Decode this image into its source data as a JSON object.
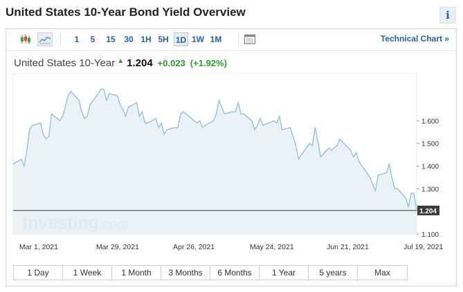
{
  "page": {
    "title": "United States 10-Year Bond Yield Overview",
    "info_label": "i"
  },
  "toolbar": {
    "timeframes": [
      "1",
      "5",
      "15",
      "30",
      "1H",
      "5H",
      "1D",
      "1W",
      "1M"
    ],
    "active_timeframe": "1D",
    "technical_chart_label": "Technical Chart »",
    "icons": [
      "candlestick-icon",
      "line-chart-icon",
      "calendar-icon"
    ]
  },
  "quote": {
    "name": "United States 10-Year",
    "last": "1.204",
    "change": "+0.023",
    "change_percent": "(+1.92%)"
  },
  "chart_data": {
    "type": "area",
    "x": [
      "2021-02-26",
      "2021-03-01",
      "2021-03-02",
      "2021-03-03",
      "2021-03-04",
      "2021-03-05",
      "2021-03-08",
      "2021-03-09",
      "2021-03-10",
      "2021-03-11",
      "2021-03-12",
      "2021-03-15",
      "2021-03-16",
      "2021-03-17",
      "2021-03-18",
      "2021-03-19",
      "2021-03-22",
      "2021-03-23",
      "2021-03-24",
      "2021-03-25",
      "2021-03-26",
      "2021-03-29",
      "2021-03-30",
      "2021-03-31",
      "2021-04-01",
      "2021-04-02",
      "2021-04-05",
      "2021-04-06",
      "2021-04-07",
      "2021-04-08",
      "2021-04-09",
      "2021-04-12",
      "2021-04-13",
      "2021-04-14",
      "2021-04-15",
      "2021-04-16",
      "2021-04-19",
      "2021-04-20",
      "2021-04-21",
      "2021-04-22",
      "2021-04-23",
      "2021-04-26",
      "2021-04-27",
      "2021-04-28",
      "2021-04-29",
      "2021-04-30",
      "2021-05-03",
      "2021-05-04",
      "2021-05-05",
      "2021-05-06",
      "2021-05-07",
      "2021-05-10",
      "2021-05-11",
      "2021-05-12",
      "2021-05-13",
      "2021-05-14",
      "2021-05-17",
      "2021-05-18",
      "2021-05-19",
      "2021-05-20",
      "2021-05-21",
      "2021-05-24",
      "2021-05-25",
      "2021-05-26",
      "2021-05-27",
      "2021-05-28",
      "2021-06-01",
      "2021-06-02",
      "2021-06-03",
      "2021-06-04",
      "2021-06-07",
      "2021-06-08",
      "2021-06-09",
      "2021-06-10",
      "2021-06-11",
      "2021-06-14",
      "2021-06-15",
      "2021-06-16",
      "2021-06-17",
      "2021-06-18",
      "2021-06-21",
      "2021-06-22",
      "2021-06-23",
      "2021-06-24",
      "2021-06-25",
      "2021-06-28",
      "2021-06-29",
      "2021-06-30",
      "2021-07-01",
      "2021-07-02",
      "2021-07-06",
      "2021-07-07",
      "2021-07-08",
      "2021-07-09",
      "2021-07-12",
      "2021-07-13",
      "2021-07-14",
      "2021-07-15",
      "2021-07-16",
      "2021-07-19",
      "2021-07-20",
      "2021-07-21",
      "2021-07-22",
      "2021-07-23"
    ],
    "y": [
      1.41,
      1.43,
      1.4,
      1.47,
      1.56,
      1.58,
      1.59,
      1.54,
      1.52,
      1.53,
      1.63,
      1.6,
      1.62,
      1.66,
      1.71,
      1.73,
      1.69,
      1.64,
      1.61,
      1.62,
      1.67,
      1.72,
      1.74,
      1.74,
      1.69,
      1.72,
      1.71,
      1.67,
      1.65,
      1.62,
      1.66,
      1.68,
      1.62,
      1.64,
      1.59,
      1.59,
      1.61,
      1.57,
      1.59,
      1.54,
      1.56,
      1.57,
      1.57,
      1.63,
      1.64,
      1.63,
      1.6,
      1.59,
      1.6,
      1.57,
      1.58,
      1.6,
      1.63,
      1.69,
      1.66,
      1.63,
      1.64,
      1.64,
      1.68,
      1.63,
      1.63,
      1.6,
      1.56,
      1.58,
      1.61,
      1.58,
      1.6,
      1.59,
      1.62,
      1.56,
      1.57,
      1.53,
      1.49,
      1.43,
      1.45,
      1.5,
      1.49,
      1.57,
      1.51,
      1.44,
      1.48,
      1.47,
      1.48,
      1.49,
      1.52,
      1.48,
      1.47,
      1.44,
      1.46,
      1.42,
      1.35,
      1.32,
      1.29,
      1.36,
      1.37,
      1.41,
      1.35,
      1.3,
      1.3,
      1.26,
      1.22,
      1.28,
      1.28,
      1.204
    ],
    "ylim": [
      1.1,
      1.81
    ],
    "y_ticks": [
      "1.600",
      "1.500",
      "1.400",
      "1.300",
      "1.100"
    ],
    "x_ticks": [
      {
        "label": "Mar 1, 2021",
        "date": "2021-03-01"
      },
      {
        "label": "Mar 29, 2021",
        "date": "2021-03-29"
      },
      {
        "label": "Apr 26, 2021",
        "date": "2021-04-26"
      },
      {
        "label": "May 24, 2021",
        "date": "2021-05-24"
      },
      {
        "label": "Jun 21, 2021",
        "date": "2021-06-21"
      },
      {
        "label": "Jul 19, 2021",
        "date": "2021-07-19"
      }
    ],
    "last_value_label": "1.204",
    "watermark": "Investing.com",
    "colors": {
      "line": "#8fbbdc",
      "fill": "#e6f0f7",
      "last_line": "#555555",
      "last_label_bg": "#3b3b3b"
    }
  },
  "range_buttons": [
    "1 Day",
    "1 Week",
    "1 Month",
    "3 Months",
    "6 Months",
    "1 Year",
    "5 years",
    "Max"
  ]
}
